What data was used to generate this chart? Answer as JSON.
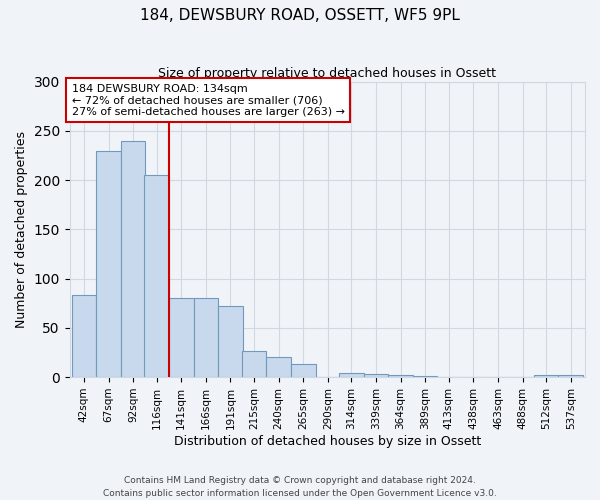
{
  "title": "184, DEWSBURY ROAD, OSSETT, WF5 9PL",
  "subtitle": "Size of property relative to detached houses in Ossett",
  "bar_labels": [
    "42sqm",
    "67sqm",
    "92sqm",
    "116sqm",
    "141sqm",
    "166sqm",
    "191sqm",
    "215sqm",
    "240sqm",
    "265sqm",
    "290sqm",
    "314sqm",
    "339sqm",
    "364sqm",
    "389sqm",
    "413sqm",
    "438sqm",
    "463sqm",
    "488sqm",
    "512sqm",
    "537sqm"
  ],
  "bar_values": [
    83,
    230,
    240,
    205,
    80,
    80,
    72,
    27,
    20,
    13,
    0,
    4,
    3,
    2,
    1,
    0,
    0,
    0,
    0,
    2,
    2
  ],
  "bar_color": "#c9d9ed",
  "bar_edge_color": "#7199be",
  "ylabel": "Number of detached properties",
  "xlabel": "Distribution of detached houses by size in Ossett",
  "ylim": [
    0,
    300
  ],
  "yticks": [
    0,
    50,
    100,
    150,
    200,
    250,
    300
  ],
  "property_line_label": "184 DEWSBURY ROAD: 134sqm",
  "annotation_line1": "← 72% of detached houses are smaller (706)",
  "annotation_line2": "27% of semi-detached houses are larger (263) →",
  "annotation_box_color": "#ffffff",
  "annotation_box_edge_color": "#cc0000",
  "line_color": "#cc0000",
  "bg_color": "#f0f4f8",
  "grid_color": "#d0d8e4",
  "footer_line1": "Contains HM Land Registry data © Crown copyright and database right 2024.",
  "footer_line2": "Contains public sector information licensed under the Open Government Licence v3.0.",
  "bin_width": 25,
  "bin_centers": [
    42,
    67,
    92,
    116,
    141,
    166,
    191,
    215,
    240,
    265,
    290,
    314,
    339,
    364,
    389,
    413,
    438,
    463,
    488,
    512,
    537
  ]
}
